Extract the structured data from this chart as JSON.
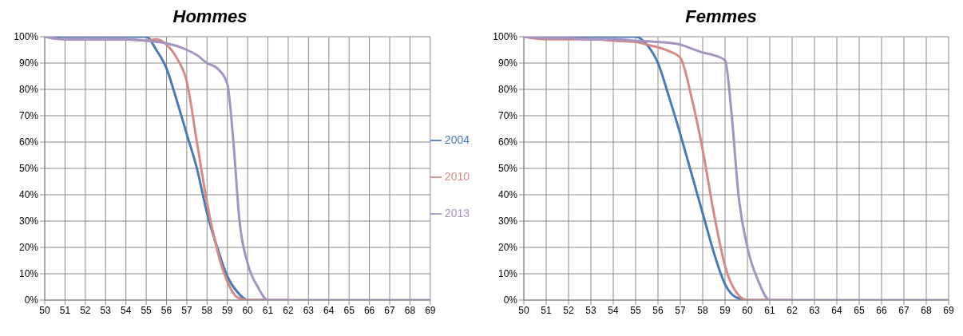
{
  "chart_data": [
    {
      "type": "line",
      "title": "Hommes",
      "xlim": [
        50,
        69
      ],
      "xticks": [
        50,
        51,
        52,
        53,
        54,
        55,
        56,
        57,
        58,
        59,
        60,
        61,
        62,
        63,
        64,
        65,
        66,
        67,
        68,
        69
      ],
      "ylim": [
        0,
        100
      ],
      "yticks": [
        {
          "value": 0,
          "label": "0%"
        },
        {
          "value": 10,
          "label": "10%"
        },
        {
          "value": 20,
          "label": "20%"
        },
        {
          "value": 30,
          "label": "30%"
        },
        {
          "value": 40,
          "label": "40%"
        },
        {
          "value": 50,
          "label": "50%"
        },
        {
          "value": 60,
          "label": "60%"
        },
        {
          "value": 70,
          "label": "70%"
        },
        {
          "value": 80,
          "label": "80%"
        },
        {
          "value": 90,
          "label": "90%"
        },
        {
          "value": 100,
          "label": "100%"
        }
      ],
      "grid": true,
      "legend": "right",
      "marker": "none",
      "line_style": "solid",
      "series": [
        {
          "name": "2004",
          "color": "#4a7ab4",
          "x": [
            50,
            51,
            52,
            53,
            54,
            55,
            55.5,
            56,
            56.5,
            57,
            57.5,
            58,
            58.5,
            59,
            59.5,
            60,
            61
          ],
          "values": [
            100,
            100,
            100,
            100,
            100,
            100,
            95,
            88,
            76,
            63,
            50,
            33,
            20,
            9,
            3,
            0,
            0
          ]
        },
        {
          "name": "2010",
          "color": "#d48a87",
          "x": [
            50,
            51,
            52,
            53,
            54,
            55,
            55.5,
            56,
            56.5,
            57,
            57.5,
            58,
            58.5,
            59,
            59.5,
            60,
            61,
            62
          ],
          "values": [
            100,
            99,
            99,
            99,
            99,
            98.5,
            99,
            97,
            92,
            83,
            60,
            37,
            19,
            7,
            1,
            0,
            0,
            0
          ]
        },
        {
          "name": "2013",
          "color": "#a593c0",
          "x": [
            50,
            51,
            52,
            53,
            54,
            55,
            56,
            56.5,
            57,
            57.5,
            58,
            58.5,
            59,
            59.3,
            59.6,
            60,
            60.5,
            61,
            62,
            63,
            64,
            65,
            66,
            67,
            68,
            69
          ],
          "values": [
            100,
            99,
            99,
            99,
            99,
            98.5,
            97.5,
            96.5,
            95,
            93,
            90,
            88,
            82,
            60,
            30,
            14,
            5,
            0,
            0,
            0,
            0,
            0,
            0,
            0,
            0,
            0
          ]
        }
      ]
    },
    {
      "type": "line",
      "title": "Femmes",
      "xlim": [
        50,
        69
      ],
      "xticks": [
        50,
        51,
        52,
        53,
        54,
        55,
        56,
        57,
        58,
        59,
        60,
        61,
        62,
        63,
        64,
        65,
        66,
        67,
        68,
        69
      ],
      "ylim": [
        0,
        100
      ],
      "yticks": [
        {
          "value": 0,
          "label": "0%"
        },
        {
          "value": 10,
          "label": "10%"
        },
        {
          "value": 20,
          "label": "20%"
        },
        {
          "value": 30,
          "label": "30%"
        },
        {
          "value": 40,
          "label": "40%"
        },
        {
          "value": 50,
          "label": "50%"
        },
        {
          "value": 60,
          "label": "60%"
        },
        {
          "value": 70,
          "label": "70%"
        },
        {
          "value": 80,
          "label": "80%"
        },
        {
          "value": 90,
          "label": "90%"
        },
        {
          "value": 100,
          "label": "100%"
        }
      ],
      "grid": true,
      "marker": "none",
      "line_style": "solid",
      "series": [
        {
          "color": "#4a7ab4",
          "x": [
            50,
            51,
            52,
            53,
            54,
            55,
            55.5,
            56,
            56.5,
            57,
            57.5,
            58,
            58.5,
            59,
            59.5,
            60,
            61
          ],
          "values": [
            100,
            100,
            100,
            100,
            100,
            100,
            97,
            90,
            77,
            63,
            48,
            33,
            18,
            6,
            1,
            0,
            0
          ]
        },
        {
          "color": "#d48a87",
          "x": [
            50,
            51,
            52,
            53,
            54,
            55,
            55.5,
            56,
            56.5,
            57,
            57.5,
            58,
            58.5,
            59,
            59.5,
            60,
            61,
            62
          ],
          "values": [
            100,
            99,
            99,
            99,
            98.5,
            98,
            97,
            96,
            94.5,
            92,
            77,
            57,
            33,
            13,
            3,
            0,
            0,
            0
          ]
        },
        {
          "color": "#a593c0",
          "x": [
            50,
            51,
            52,
            53,
            54,
            55,
            56,
            57,
            57.5,
            58,
            58.5,
            59,
            59.3,
            59.6,
            60,
            60.5,
            61,
            62,
            63,
            64,
            65,
            66,
            67,
            68,
            69
          ],
          "values": [
            100,
            99.5,
            99.5,
            99,
            99,
            98.5,
            98,
            97,
            95.5,
            94,
            93,
            91,
            70,
            40,
            20,
            7,
            0,
            0,
            0,
            0,
            0,
            0,
            0,
            0,
            0
          ]
        }
      ]
    }
  ]
}
